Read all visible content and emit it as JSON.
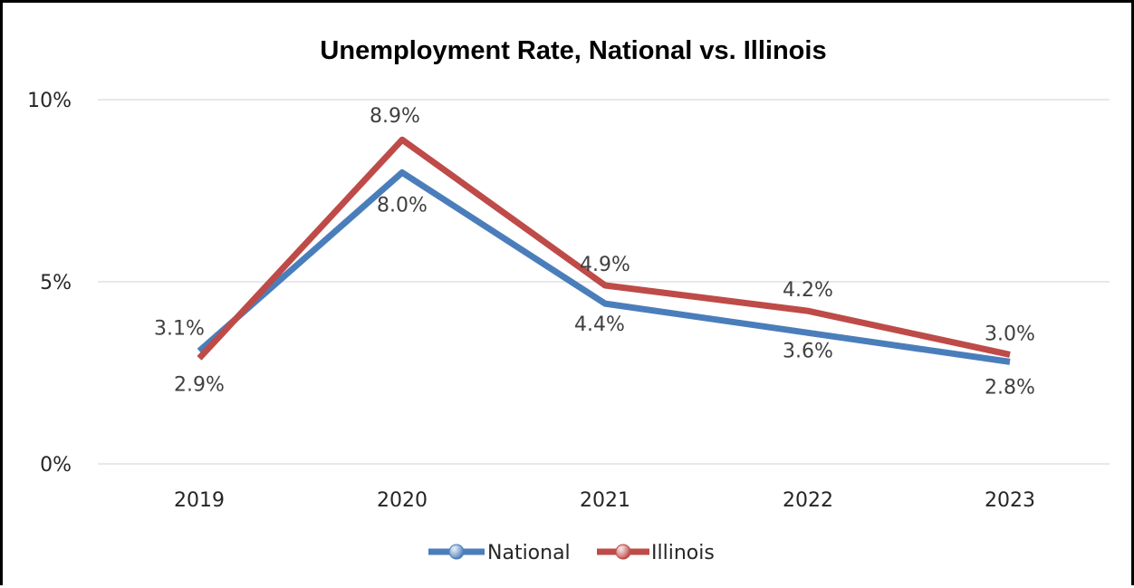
{
  "chart_data": {
    "type": "line",
    "title": "Unemployment Rate, National vs. Illinois",
    "categories": [
      "2019",
      "2020",
      "2021",
      "2022",
      "2023"
    ],
    "series": [
      {
        "name": "National",
        "values": [
          3.1,
          8.0,
          4.4,
          3.6,
          2.8
        ],
        "labels": [
          "3.1%",
          "8.0%",
          "4.4%",
          "3.6%",
          "2.8%"
        ],
        "color": "#4a7ebb"
      },
      {
        "name": "Illinois",
        "values": [
          2.9,
          8.9,
          4.9,
          4.2,
          3.0
        ],
        "labels": [
          "2.9%",
          "8.9%",
          "4.9%",
          "4.2%",
          "3.0%"
        ],
        "color": "#be4b48"
      }
    ],
    "ylim": [
      0,
      10
    ],
    "yticks": [
      {
        "value": 0,
        "label": "0%"
      },
      {
        "value": 5,
        "label": "5%"
      },
      {
        "value": 10,
        "label": "10%"
      }
    ],
    "grid": true,
    "legend_position": "bottom"
  }
}
